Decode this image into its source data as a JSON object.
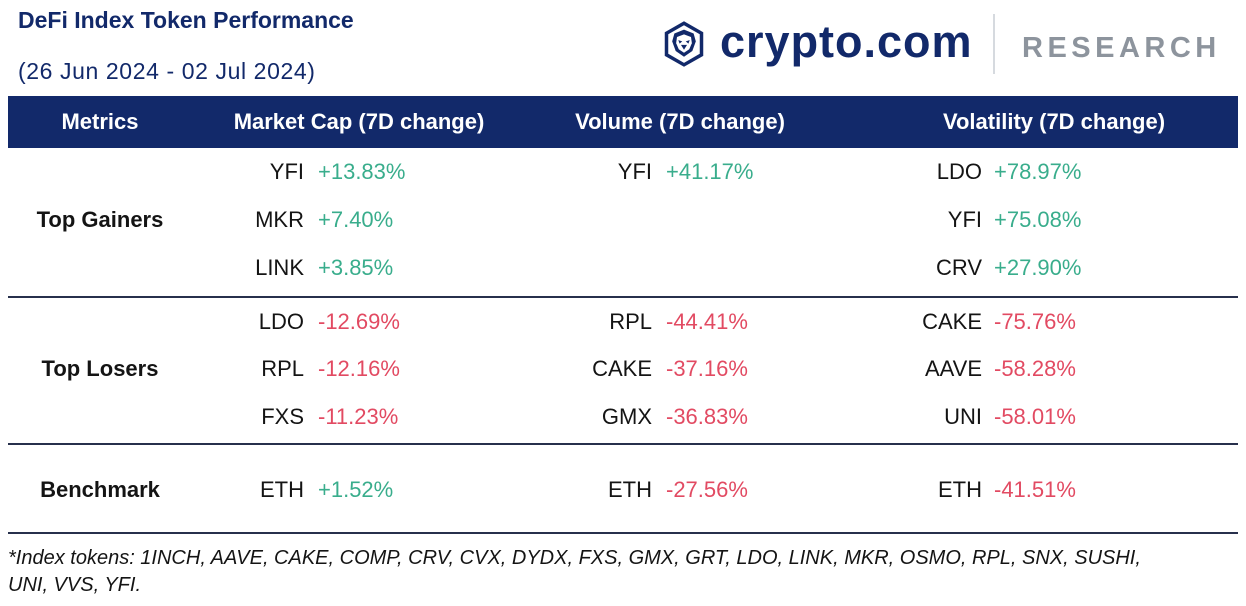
{
  "brand": {
    "icon": "crypto-com-lion-shield-icon",
    "wordmark": "crypto.com",
    "division": "RESEARCH"
  },
  "colors": {
    "navy": "#12296a",
    "positive": "#39ad8c",
    "negative": "#e24a62",
    "research_gray": "#8d949d",
    "rule": "#27304c",
    "divider": "#d6dadf",
    "text": "#141414",
    "header_text": "#ffffff"
  },
  "chart_data": {
    "type": "table",
    "title": "DeFi Index Token Performance",
    "subtitle": "(26 Jun 2024 - 02 Jul 2024)",
    "columns": [
      "Metrics",
      "Market Cap (7D change)",
      "Volume (7D change)",
      "Volatility (7D change)"
    ],
    "groups": [
      {
        "metric": "Top Gainers",
        "rows": [
          {
            "market_cap": {
              "token": "YFI",
              "change": "+13.83%"
            },
            "volume": {
              "token": "YFI",
              "change": "+41.17%"
            },
            "volatility": {
              "token": "LDO",
              "change": "+78.97%"
            }
          },
          {
            "market_cap": {
              "token": "MKR",
              "change": "+7.40%"
            },
            "volatility": {
              "token": "YFI",
              "change": "+75.08%"
            }
          },
          {
            "market_cap": {
              "token": "LINK",
              "change": "+3.85%"
            },
            "volatility": {
              "token": "CRV",
              "change": "+27.90%"
            }
          }
        ]
      },
      {
        "metric": "Top Losers",
        "rows": [
          {
            "market_cap": {
              "token": "LDO",
              "change": "-12.69%"
            },
            "volume": {
              "token": "RPL",
              "change": "-44.41%"
            },
            "volatility": {
              "token": "CAKE",
              "change": "-75.76%"
            }
          },
          {
            "market_cap": {
              "token": "RPL",
              "change": "-12.16%"
            },
            "volume": {
              "token": "CAKE",
              "change": "-37.16%"
            },
            "volatility": {
              "token": "AAVE",
              "change": "-58.28%"
            }
          },
          {
            "market_cap": {
              "token": "FXS",
              "change": "-11.23%"
            },
            "volume": {
              "token": "GMX",
              "change": "-36.83%"
            },
            "volatility": {
              "token": "UNI",
              "change": "-58.01%"
            }
          }
        ]
      },
      {
        "metric": "Benchmark",
        "rows": [
          {
            "market_cap": {
              "token": "ETH",
              "change": "+1.52%"
            },
            "volume": {
              "token": "ETH",
              "change": "-27.56%"
            },
            "volatility": {
              "token": "ETH",
              "change": "-41.51%"
            }
          }
        ]
      }
    ],
    "footnote_lines": [
      "*Index tokens: 1INCH, AAVE, CAKE, COMP, CRV, CVX, DYDX, FXS, GMX, GRT, LDO, LINK, MKR, OSMO, RPL, SNX, SUSHI,",
      "UNI, VVS, YFI."
    ]
  }
}
